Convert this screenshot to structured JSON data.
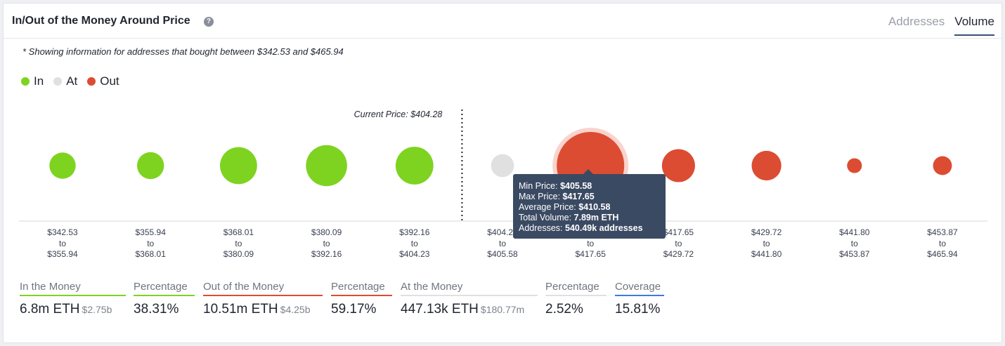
{
  "header": {
    "title": "In/Out of the Money Around Price",
    "tabs": [
      {
        "label": "Addresses",
        "active": false
      },
      {
        "label": "Volume",
        "active": true
      }
    ]
  },
  "note": "* Showing information for addresses that bought between $342.53 and $465.94",
  "legend": [
    {
      "label": "In",
      "color": "#7ed321"
    },
    {
      "label": "At",
      "color": "#e0e0e0"
    },
    {
      "label": "Out",
      "color": "#dc4c32"
    }
  ],
  "colors": {
    "in": "#7ed321",
    "at": "#e0e0e0",
    "out": "#dc4c32",
    "coverage": "#3a7be0"
  },
  "chart_data": {
    "type": "scatter",
    "current_price_label": "Current Price: $404.28",
    "current_price_index": 5,
    "bins": [
      {
        "from": "$342.53",
        "to": "$355.94",
        "status": "in",
        "size": 0.39
      },
      {
        "from": "$355.94",
        "to": "$368.01",
        "status": "in",
        "size": 0.4
      },
      {
        "from": "$368.01",
        "to": "$380.09",
        "status": "in",
        "size": 0.55
      },
      {
        "from": "$380.09",
        "to": "$392.16",
        "status": "in",
        "size": 0.61
      },
      {
        "from": "$392.16",
        "to": "$404.23",
        "status": "in",
        "size": 0.56
      },
      {
        "from": "$404.23",
        "to": "$405.58",
        "status": "at",
        "size": 0.34
      },
      {
        "from": "$405.58",
        "to": "$417.65",
        "status": "out",
        "size": 1.0,
        "highlighted": true
      },
      {
        "from": "$417.65",
        "to": "$429.72",
        "status": "out",
        "size": 0.49
      },
      {
        "from": "$429.72",
        "to": "$441.80",
        "status": "out",
        "size": 0.44
      },
      {
        "from": "$441.80",
        "to": "$453.87",
        "status": "out",
        "size": 0.22
      },
      {
        "from": "$453.87",
        "to": "$465.94",
        "status": "out",
        "size": 0.28
      }
    ],
    "to_word": "to",
    "tooltip": {
      "min_label": "Min Price:",
      "min_value": "$405.58",
      "max_label": "Max Price:",
      "max_value": "$417.65",
      "avg_label": "Average Price:",
      "avg_value": "$410.58",
      "vol_label": "Total Volume:",
      "vol_value": "7.89m ETH",
      "addr_label": "Addresses:",
      "addr_value": "540.49k addresses"
    }
  },
  "stats": [
    {
      "label": "In the Money",
      "value": "6.8m ETH",
      "sub": "$2.75b",
      "color": "#7ed321"
    },
    {
      "label": "Percentage",
      "value": "38.31%",
      "sub": "",
      "color": "#7ed321"
    },
    {
      "label": "Out of the Money",
      "value": "10.51m ETH",
      "sub": "$4.25b",
      "color": "#dc4c32"
    },
    {
      "label": "Percentage",
      "value": "59.17%",
      "sub": "",
      "color": "#dc4c32"
    },
    {
      "label": "At the Money",
      "value": "447.13k ETH",
      "sub": "$180.77m",
      "color": "#e0e0e0"
    },
    {
      "label": "Percentage",
      "value": "2.52%",
      "sub": "",
      "color": "#e0e0e0"
    },
    {
      "label": "Coverage",
      "value": "15.81%",
      "sub": "",
      "color": "#3a7be0"
    }
  ]
}
